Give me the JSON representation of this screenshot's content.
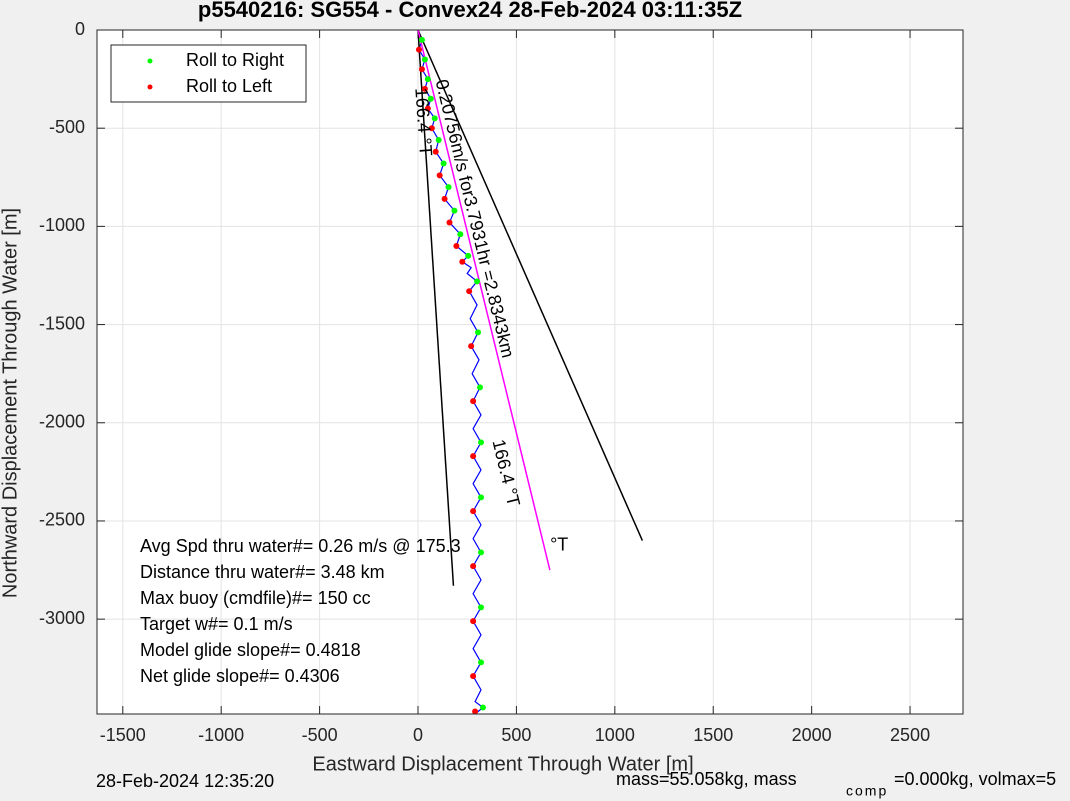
{
  "chart_data": {
    "type": "line",
    "title": "p5540216: SG554 - Convex24 28-Feb-2024 03:11:35Z",
    "x_label": "Eastward Displacement Through Water [m]",
    "y_label": "Northward Displacement Through Water [m]",
    "xlim": [
      -1631,
      2769
    ],
    "ylim": [
      -3483,
      0
    ],
    "xticks": [
      -1500,
      -1000,
      -500,
      0,
      500,
      1000,
      1500,
      2000,
      2500
    ],
    "yticks": [
      0,
      -500,
      -1000,
      -1500,
      -2000,
      -2500,
      -3000
    ],
    "grid": true,
    "legend": "upper left",
    "series": [
      {
        "name": "Roll to Right",
        "color": "#00ff00",
        "x": [
          20,
          35,
          50,
          65,
          85,
          105,
          130,
          155,
          185,
          215,
          255,
          300,
          305,
          315,
          320,
          320,
          320,
          320,
          320,
          330
        ],
        "values": [
          -50,
          -150,
          -250,
          -350,
          -450,
          -560,
          -680,
          -800,
          -920,
          -1040,
          -1150,
          -1280,
          -1540,
          -1820,
          -2100,
          -2380,
          -2660,
          -2940,
          -3220,
          -3450
        ]
      },
      {
        "name": "Roll to Left",
        "color": "#ff0000",
        "x": [
          5,
          20,
          35,
          50,
          70,
          90,
          110,
          135,
          160,
          195,
          225,
          260,
          270,
          280,
          280,
          280,
          280,
          280,
          280,
          290
        ],
        "values": [
          -100,
          -200,
          -300,
          -400,
          -500,
          -620,
          -740,
          -860,
          -980,
          -1100,
          -1180,
          -1330,
          -1610,
          -1890,
          -2170,
          -2450,
          -2730,
          -3010,
          -3290,
          -3470
        ]
      }
    ],
    "lines": [
      {
        "color": "#0000ff",
        "x": [
          0,
          20,
          5,
          35,
          20,
          50,
          35,
          65,
          50,
          85,
          70,
          105,
          90,
          130,
          110,
          155,
          135,
          185,
          160,
          215,
          195,
          255,
          225,
          270,
          250,
          300,
          260,
          300,
          265,
          305,
          270,
          310,
          275,
          315,
          280,
          320,
          280,
          320,
          280,
          320,
          280,
          320,
          280,
          320,
          280,
          320,
          280,
          320,
          280,
          320,
          280,
          320,
          280,
          320,
          280,
          320,
          290,
          330,
          290
        ],
        "values": [
          0,
          -50,
          -100,
          -150,
          -200,
          -250,
          -300,
          -350,
          -400,
          -450,
          -500,
          -560,
          -620,
          -680,
          -740,
          -800,
          -860,
          -920,
          -980,
          -1040,
          -1100,
          -1150,
          -1180,
          -1210,
          -1240,
          -1280,
          -1330,
          -1400,
          -1470,
          -1540,
          -1610,
          -1680,
          -1750,
          -1820,
          -1890,
          -1960,
          -2030,
          -2100,
          -2170,
          -2240,
          -2310,
          -2380,
          -2450,
          -2520,
          -2590,
          -2660,
          -2730,
          -2800,
          -2870,
          -2940,
          -3010,
          -3080,
          -3150,
          -3220,
          -3290,
          -3360,
          -3420,
          -3450,
          -3483
        ]
      },
      {
        "color": "#000000",
        "x": [
          0,
          180
        ],
        "values": [
          0,
          -2830
        ]
      },
      {
        "color": "#000000",
        "x": [
          0,
          1140
        ],
        "values": [
          0,
          -2600
        ]
      },
      {
        "color": "#ff00ff",
        "x": [
          0,
          670
        ],
        "values": [
          0,
          -2750
        ]
      }
    ],
    "annotations": [
      {
        "text": "0.20756m/s for3.7931hr =2.8343km",
        "x": 112,
        "y": -255
      },
      {
        "text": "166.4 °T",
        "x": 10,
        "y": -295
      },
      {
        "text": "166.4 °T",
        "x": 401,
        "y": -2088
      },
      {
        "text": "°T",
        "x": 671,
        "y": -2627
      }
    ],
    "notes": [
      "Avg Spd thru water#=  0.26 m/s @ 175.3",
      "Distance thru water#=  3.48 km",
      "Max buoy (cmdfile)#= 150 cc",
      "Target w#= 0.1 m/s",
      "Model glide slope#= 0.4818",
      "Net glide slope#= 0.4306"
    ],
    "footer_left": "28-Feb-2024 12:35:20",
    "footer_right": [
      "mass=55.058kg, mass",
      "comp",
      "=0.000kg, volmax=5"
    ]
  }
}
